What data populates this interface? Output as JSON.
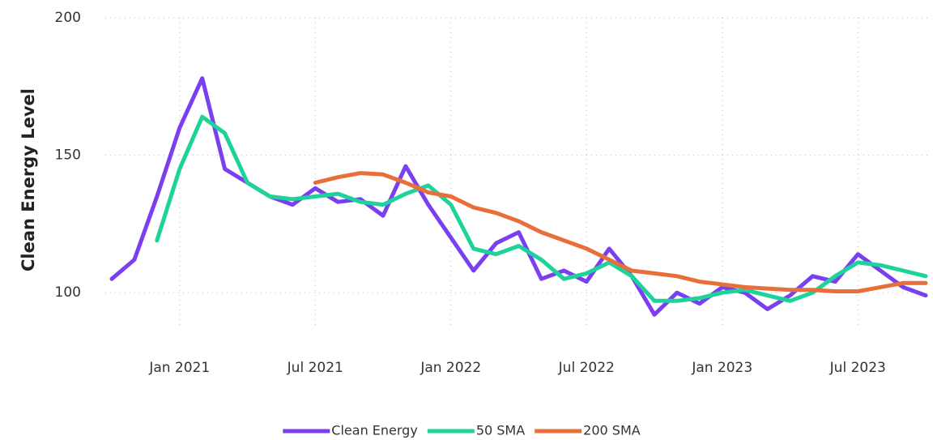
{
  "chart_data": {
    "type": "line",
    "y_label": "Clean Energy Level",
    "x": [
      "2020-10",
      "2020-11",
      "2020-12",
      "2021-01",
      "2021-02",
      "2021-03",
      "2021-04",
      "2021-05",
      "2021-06",
      "2021-07",
      "2021-08",
      "2021-09",
      "2021-10",
      "2021-11",
      "2021-12",
      "2022-01",
      "2022-02",
      "2022-03",
      "2022-04",
      "2022-05",
      "2022-06",
      "2022-07",
      "2022-08",
      "2022-09",
      "2022-10",
      "2022-11",
      "2022-12",
      "2023-01",
      "2023-02",
      "2023-03",
      "2023-04",
      "2023-05",
      "2023-06",
      "2023-07",
      "2023-08",
      "2023-09",
      "2023-10"
    ],
    "series": [
      {
        "name": "Clean Energy",
        "color": "#7b3ff2",
        "values": [
          105,
          112,
          135,
          160,
          178,
          145,
          140,
          135,
          132,
          138,
          133,
          134,
          128,
          146,
          132,
          120,
          108,
          118,
          122,
          105,
          108,
          104,
          116,
          106,
          92,
          100,
          96,
          102,
          100,
          94,
          99,
          106,
          104,
          114,
          108,
          102,
          99
        ]
      },
      {
        "name": "50 SMA",
        "color": "#1dd39a",
        "values": [
          null,
          null,
          119,
          145,
          164,
          158,
          140,
          135,
          134,
          135,
          136,
          133,
          132,
          136,
          139,
          132,
          116,
          114,
          117,
          112,
          105,
          107,
          111,
          106,
          97,
          97,
          98,
          100,
          101,
          99,
          97,
          100,
          106,
          111,
          110,
          108,
          106
        ]
      },
      {
        "name": "200 SMA",
        "color": "#e86f3a",
        "values": [
          null,
          null,
          null,
          null,
          null,
          null,
          null,
          null,
          null,
          140,
          142,
          143.5,
          143,
          140,
          136.5,
          135,
          131,
          129,
          126,
          122,
          119,
          116,
          112,
          108,
          107,
          106,
          104,
          103,
          102,
          101.5,
          101,
          101,
          100.5,
          100.5,
          102,
          103.5,
          103.5
        ]
      }
    ],
    "xlim": [
      "2020-10",
      "2023-10"
    ],
    "xticks": [
      {
        "value": "2021-01",
        "label": "Jan 2021"
      },
      {
        "value": "2021-07",
        "label": "Jul 2021"
      },
      {
        "value": "2022-01",
        "label": "Jan 2022"
      },
      {
        "value": "2022-07",
        "label": "Jul 2022"
      },
      {
        "value": "2023-01",
        "label": "Jan 2023"
      },
      {
        "value": "2023-07",
        "label": "Jul 2023"
      }
    ],
    "ylim": [
      80,
      200
    ],
    "yticks": [
      100,
      150,
      200
    ],
    "grid": true,
    "legend": "bottom"
  }
}
